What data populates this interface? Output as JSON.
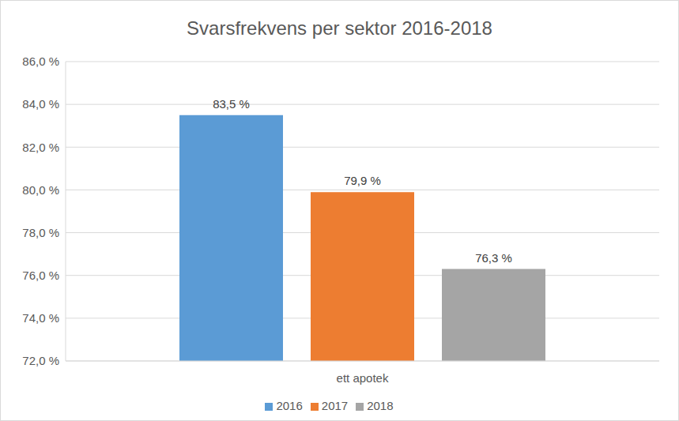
{
  "chart_data": {
    "type": "bar",
    "title": "Svarsfrekvens per sektor 2016-2018",
    "categories": [
      "ett apotek"
    ],
    "series": [
      {
        "name": "2016",
        "color": "#5b9bd5",
        "values": [
          83.5
        ],
        "value_labels": [
          "83,5 %"
        ]
      },
      {
        "name": "2017",
        "color": "#ed7d31",
        "values": [
          79.9
        ],
        "value_labels": [
          "79,9 %"
        ]
      },
      {
        "name": "2018",
        "color": "#a5a5a5",
        "values": [
          76.3
        ],
        "value_labels": [
          "76,3 %"
        ]
      }
    ],
    "ylim": [
      72,
      86
    ],
    "yticks": [
      {
        "value": 72,
        "label": "72,0 %"
      },
      {
        "value": 74,
        "label": "74,0 %"
      },
      {
        "value": 76,
        "label": "76,0 %"
      },
      {
        "value": 78,
        "label": "78,0 %"
      },
      {
        "value": 80,
        "label": "80,0 %"
      },
      {
        "value": 82,
        "label": "82,0 %"
      },
      {
        "value": 84,
        "label": "84,0 %"
      },
      {
        "value": 86,
        "label": "86,0 %"
      }
    ],
    "grid": true,
    "legend": "bottom",
    "data_labels": true
  }
}
